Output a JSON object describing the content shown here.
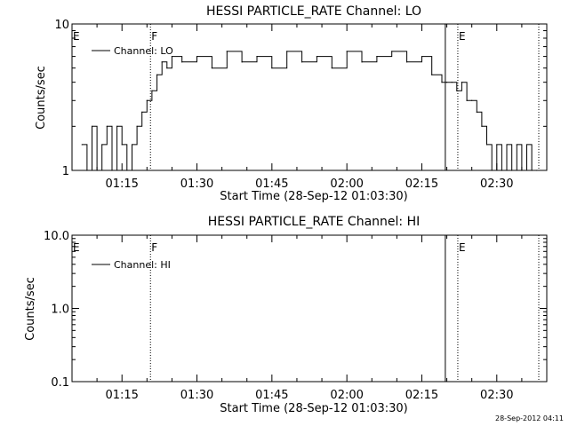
{
  "chart_data": [
    {
      "type": "line",
      "title": "HESSI PARTICLE_RATE Channel: LO",
      "xlabel": "Start Time (28-Sep-12 01:03:30)",
      "ylabel": "Counts/sec",
      "y_scale": "log",
      "ylim": [
        1,
        10
      ],
      "y_ticks": [
        {
          "value": 1,
          "label": "1"
        },
        {
          "value": 10,
          "label": "10"
        }
      ],
      "xlim": [
        "01:05",
        "02:40"
      ],
      "x_ticks": [
        "01:15",
        "01:30",
        "01:45",
        "02:00",
        "02:15",
        "02:30"
      ],
      "legend": {
        "position": "top-left",
        "entries": [
          "Channel: LO"
        ]
      },
      "flags": [
        {
          "label": "E",
          "time": "01:05"
        },
        {
          "label": "F",
          "time": "01:20.7"
        },
        {
          "label": "E",
          "time": "02:22.2"
        }
      ],
      "vertical_lines": [
        {
          "time": "01:20.7",
          "style": "dotted"
        },
        {
          "time": "02:19.7",
          "style": "solid"
        },
        {
          "time": "02:22.2",
          "style": "dotted"
        },
        {
          "time": "02:38.4",
          "style": "dotted"
        }
      ],
      "series": [
        {
          "name": "Channel: LO",
          "x": [
            "01:07",
            "01:08",
            "01:09",
            "01:10",
            "01:11",
            "01:12",
            "01:13",
            "01:14",
            "01:15",
            "01:16",
            "01:17",
            "01:18",
            "01:19",
            "01:20",
            "01:21",
            "01:22",
            "01:23",
            "01:24",
            "01:25",
            "01:27",
            "01:30",
            "01:33",
            "01:36",
            "01:39",
            "01:42",
            "01:45",
            "01:48",
            "01:51",
            "01:54",
            "01:57",
            "02:00",
            "02:03",
            "02:06",
            "02:09",
            "02:12",
            "02:15",
            "02:17",
            "02:19",
            "02:20",
            "02:21",
            "02:22",
            "02:23",
            "02:24",
            "02:25",
            "02:26",
            "02:27",
            "02:28",
            "02:29",
            "02:30",
            "02:31",
            "02:32",
            "02:33",
            "02:34",
            "02:35",
            "02:36",
            "02:37",
            "02:38"
          ],
          "values": [
            1.5,
            1.0,
            2.0,
            1.0,
            1.5,
            2.0,
            1.0,
            2.0,
            1.5,
            1.0,
            1.5,
            2.0,
            2.5,
            3.0,
            3.5,
            4.5,
            5.5,
            5.0,
            6.0,
            5.5,
            6.0,
            5.0,
            6.5,
            5.5,
            6.0,
            5.0,
            6.5,
            5.5,
            6.0,
            5.0,
            6.5,
            5.5,
            6.0,
            6.5,
            5.5,
            6.0,
            4.5,
            4.0,
            4.0,
            4.0,
            3.5,
            4.0,
            3.0,
            3.0,
            2.5,
            2.0,
            1.5,
            1.0,
            1.5,
            1.0,
            1.5,
            1.0,
            1.5,
            1.0,
            1.5,
            1.0,
            1.0
          ]
        }
      ]
    },
    {
      "type": "line",
      "title": "HESSI PARTICLE_RATE Channel: HI",
      "xlabel": "Start Time (28-Sep-12 01:03:30)",
      "ylabel": "Counts/sec",
      "y_scale": "log",
      "ylim": [
        0.1,
        10
      ],
      "y_ticks": [
        {
          "value": 0.1,
          "label": "0.1"
        },
        {
          "value": 1,
          "label": "1.0"
        },
        {
          "value": 10,
          "label": "10.0"
        }
      ],
      "xlim": [
        "01:05",
        "02:40"
      ],
      "x_ticks": [
        "01:15",
        "01:30",
        "01:45",
        "02:00",
        "02:15",
        "02:30"
      ],
      "legend": {
        "position": "top-left",
        "entries": [
          "Channel: HI"
        ]
      },
      "flags": [
        {
          "label": "E",
          "time": "01:05"
        },
        {
          "label": "F",
          "time": "01:20.7"
        },
        {
          "label": "E",
          "time": "02:22.2"
        }
      ],
      "vertical_lines": [
        {
          "time": "01:20.7",
          "style": "dotted"
        },
        {
          "time": "02:19.7",
          "style": "solid"
        },
        {
          "time": "02:22.2",
          "style": "dotted"
        },
        {
          "time": "02:38.4",
          "style": "dotted"
        }
      ],
      "series": [
        {
          "name": "Channel: HI",
          "x": [],
          "values": []
        }
      ]
    }
  ],
  "footer": {
    "timestamp": "28-Sep-2012 04:11"
  }
}
